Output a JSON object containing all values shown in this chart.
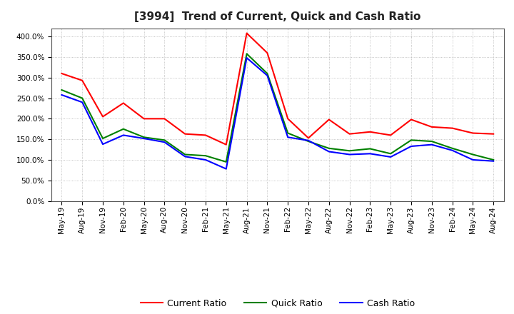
{
  "title": "[3994]  Trend of Current, Quick and Cash Ratio",
  "x_labels": [
    "May-19",
    "Aug-19",
    "Nov-19",
    "Feb-20",
    "May-20",
    "Aug-20",
    "Nov-20",
    "Feb-21",
    "May-21",
    "Aug-21",
    "Nov-21",
    "Feb-22",
    "May-22",
    "Aug-22",
    "Nov-22",
    "Feb-23",
    "May-23",
    "Aug-23",
    "Nov-23",
    "Feb-24",
    "May-24",
    "Aug-24"
  ],
  "current_ratio": [
    310,
    293,
    205,
    238,
    200,
    200,
    163,
    160,
    137,
    408,
    360,
    200,
    153,
    198,
    163,
    168,
    160,
    198,
    180,
    177,
    165,
    163
  ],
  "quick_ratio": [
    270,
    250,
    152,
    175,
    155,
    148,
    113,
    110,
    95,
    358,
    310,
    165,
    145,
    128,
    122,
    127,
    115,
    148,
    145,
    128,
    113,
    100
  ],
  "cash_ratio": [
    258,
    240,
    138,
    160,
    152,
    143,
    108,
    100,
    78,
    348,
    305,
    155,
    147,
    120,
    113,
    115,
    107,
    133,
    137,
    123,
    100,
    97
  ],
  "current_color": "#FF0000",
  "quick_color": "#008000",
  "cash_color": "#0000FF",
  "ylim": [
    0,
    420
  ],
  "yticks": [
    0,
    50,
    100,
    150,
    200,
    250,
    300,
    350,
    400
  ],
  "background_color": "#FFFFFF",
  "grid_color": "#AAAAAA",
  "title_fontsize": 11,
  "tick_fontsize": 7.5,
  "legend_labels": [
    "Current Ratio",
    "Quick Ratio",
    "Cash Ratio"
  ],
  "legend_fontsize": 9,
  "linewidth": 1.5
}
